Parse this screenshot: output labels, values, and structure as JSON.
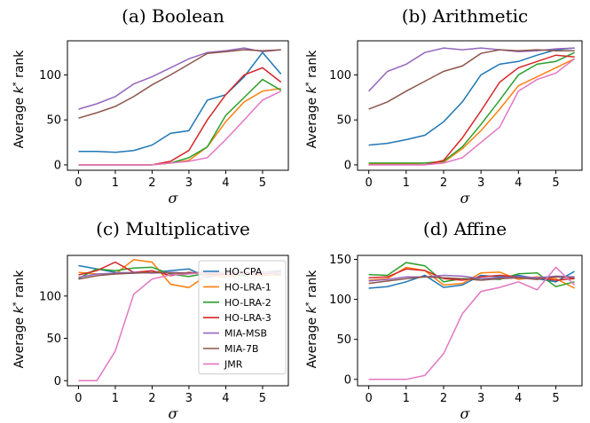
{
  "colors": {
    "HO-CPA": "#1f77b4",
    "HO-LRA-1": "#ff7f0e",
    "HO-LRA-2": "#2ca02c",
    "HO-LRA-3": "#d62728",
    "MIA-MSB": "#9467bd",
    "MIA-7B": "#8c564b",
    "JMR": "#e377c2"
  },
  "chart_data": [
    {
      "type": "line",
      "title": "(a) Boolean",
      "xlabel": "σ",
      "ylabel": "Average k* rank",
      "x": [
        0,
        0.5,
        1,
        1.5,
        2,
        2.5,
        3,
        3.5,
        4,
        4.5,
        5,
        5.5
      ],
      "xticks": [
        "0",
        "1",
        "2",
        "3",
        "4",
        "5"
      ],
      "yticks": [
        "0",
        "50",
        "100"
      ],
      "xlim": [
        -0.3,
        5.7
      ],
      "ylim": [
        -6,
        138
      ],
      "grid": false,
      "legend": false,
      "series": [
        {
          "name": "HO-CPA",
          "values": [
            15,
            15,
            14,
            16,
            22,
            35,
            38,
            72,
            78,
            98,
            125,
            101
          ]
        },
        {
          "name": "HO-LRA-1",
          "values": [
            0,
            0,
            0,
            0,
            0,
            2,
            5,
            20,
            48,
            70,
            82,
            85
          ]
        },
        {
          "name": "HO-LRA-2",
          "values": [
            0,
            0,
            0,
            0,
            0,
            2,
            8,
            20,
            55,
            75,
            95,
            83
          ]
        },
        {
          "name": "HO-LRA-3",
          "values": [
            0,
            0,
            0,
            0,
            0,
            4,
            16,
            50,
            78,
            100,
            108,
            92
          ]
        },
        {
          "name": "MIA-MSB",
          "values": [
            62,
            68,
            76,
            90,
            98,
            108,
            118,
            125,
            127,
            130,
            126,
            128
          ]
        },
        {
          "name": "MIA-7B",
          "values": [
            52,
            58,
            65,
            76,
            89,
            100,
            112,
            124,
            126,
            128,
            127,
            128
          ]
        },
        {
          "name": "JMR",
          "values": [
            0,
            0,
            0,
            0,
            0,
            2,
            4,
            8,
            28,
            50,
            72,
            82
          ]
        }
      ]
    },
    {
      "type": "line",
      "title": "(b) Arithmetic",
      "xlabel": "σ",
      "ylabel": "Average k* rank",
      "x": [
        0,
        0.5,
        1,
        1.5,
        2,
        2.5,
        3,
        3.5,
        4,
        4.5,
        5,
        5.5
      ],
      "xticks": [
        "0",
        "1",
        "2",
        "3",
        "4",
        "5"
      ],
      "yticks": [
        "0",
        "50",
        "100"
      ],
      "xlim": [
        -0.3,
        5.7
      ],
      "ylim": [
        -6,
        138
      ],
      "grid": false,
      "legend": false,
      "series": [
        {
          "name": "HO-CPA",
          "values": [
            22,
            24,
            28,
            33,
            48,
            70,
            100,
            112,
            115,
            122,
            128,
            130
          ]
        },
        {
          "name": "HO-LRA-1",
          "values": [
            1,
            1,
            1,
            2,
            3,
            18,
            38,
            62,
            88,
            98,
            108,
            118
          ]
        },
        {
          "name": "HO-LRA-2",
          "values": [
            2,
            2,
            2,
            2,
            4,
            20,
            45,
            72,
            100,
            112,
            115,
            125
          ]
        },
        {
          "name": "HO-LRA-3",
          "values": [
            0,
            0,
            0,
            0,
            5,
            30,
            60,
            92,
            108,
            115,
            122,
            120
          ]
        },
        {
          "name": "MIA-MSB",
          "values": [
            82,
            104,
            112,
            125,
            130,
            128,
            130,
            128,
            126,
            127,
            129,
            130
          ]
        },
        {
          "name": "MIA-7B",
          "values": [
            62,
            70,
            82,
            93,
            104,
            110,
            124,
            128,
            127,
            128,
            127,
            127
          ]
        },
        {
          "name": "JMR",
          "values": [
            0,
            0,
            0,
            0,
            2,
            8,
            25,
            42,
            82,
            95,
            102,
            118
          ]
        }
      ]
    },
    {
      "type": "line",
      "title": "(c) Multiplicative",
      "xlabel": "σ",
      "ylabel": "Average k* rank",
      "x": [
        0,
        0.5,
        1,
        1.5,
        2,
        2.5,
        3,
        3.5,
        4,
        4.5,
        5,
        5.5
      ],
      "xticks": [
        "0",
        "1",
        "2",
        "3",
        "4",
        "5"
      ],
      "yticks": [
        "0",
        "50",
        "100"
      ],
      "xlim": [
        -0.3,
        5.7
      ],
      "ylim": [
        -6,
        148
      ],
      "grid": false,
      "legend": true,
      "legend_position": "upper-right",
      "series": [
        {
          "name": "HO-CPA",
          "values": [
            136,
            132,
            128,
            127,
            128,
            130,
            132,
            122,
            128,
            127,
            128,
            130
          ]
        },
        {
          "name": "HO-LRA-1",
          "values": [
            128,
            126,
            126,
            143,
            140,
            114,
            110,
            125,
            122,
            126,
            124,
            125
          ]
        },
        {
          "name": "HO-LRA-2",
          "values": [
            121,
            132,
            130,
            133,
            134,
            126,
            123,
            127,
            126,
            124,
            129,
            125
          ]
        },
        {
          "name": "HO-LRA-3",
          "values": [
            125,
            130,
            140,
            128,
            130,
            124,
            128,
            126,
            125,
            127,
            126,
            128
          ]
        },
        {
          "name": "MIA-MSB",
          "values": [
            122,
            126,
            127,
            128,
            127,
            128,
            127,
            128,
            128,
            127,
            128,
            128
          ]
        },
        {
          "name": "MIA-7B",
          "values": [
            120,
            124,
            126,
            127,
            128,
            127,
            127,
            128,
            127,
            128,
            127,
            128
          ]
        },
        {
          "name": "JMR",
          "values": [
            0,
            0,
            35,
            102,
            120,
            125,
            126,
            128,
            127,
            126,
            128,
            127
          ]
        }
      ]
    },
    {
      "type": "line",
      "title": "(d) Affine",
      "xlabel": "σ",
      "ylabel": "Average k* rank",
      "x": [
        0,
        0.5,
        1,
        1.5,
        2,
        2.5,
        3,
        3.5,
        4,
        4.5,
        5,
        5.5
      ],
      "xticks": [
        "0",
        "1",
        "2",
        "3",
        "4",
        "5"
      ],
      "yticks": [
        "0",
        "50",
        "100",
        "150"
      ],
      "xlim": [
        -0.3,
        5.7
      ],
      "ylim": [
        -8,
        155
      ],
      "grid": false,
      "legend": false,
      "series": [
        {
          "name": "HO-CPA",
          "values": [
            114,
            116,
            122,
            130,
            115,
            118,
            130,
            128,
            130,
            126,
            122,
            135
          ]
        },
        {
          "name": "HO-LRA-1",
          "values": [
            124,
            126,
            140,
            136,
            118,
            120,
            133,
            134,
            125,
            128,
            126,
            114
          ]
        },
        {
          "name": "HO-LRA-2",
          "values": [
            131,
            130,
            146,
            142,
            122,
            126,
            126,
            125,
            132,
            133,
            116,
            122
          ]
        },
        {
          "name": "HO-LRA-3",
          "values": [
            127,
            128,
            138,
            136,
            126,
            124,
            128,
            130,
            128,
            127,
            124,
            126
          ]
        },
        {
          "name": "MIA-MSB",
          "values": [
            123,
            125,
            128,
            128,
            130,
            129,
            126,
            127,
            128,
            127,
            129,
            128
          ]
        },
        {
          "name": "MIA-7B",
          "values": [
            120,
            123,
            126,
            128,
            127,
            126,
            124,
            126,
            127,
            125,
            128,
            127
          ]
        },
        {
          "name": "JMR",
          "values": [
            0,
            0,
            0,
            5,
            32,
            82,
            110,
            115,
            122,
            112,
            140,
            118
          ]
        }
      ]
    }
  ]
}
